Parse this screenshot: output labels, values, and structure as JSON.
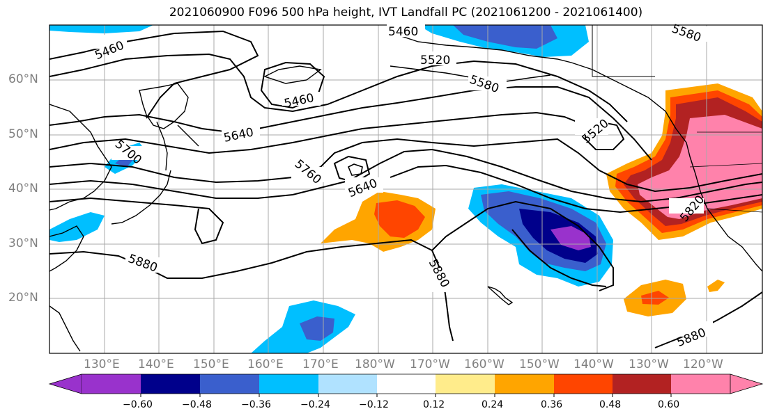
{
  "title": "2021060900 F096 500 hPa height, IVT Landfall PC (2021061200 - 2021061400)",
  "map": {
    "lat_labels": [
      "60°N",
      "50°N",
      "40°N",
      "30°N",
      "20°N"
    ],
    "lon_labels": [
      "130°E",
      "140°E",
      "150°E",
      "160°E",
      "170°E",
      "180°W",
      "170°W",
      "160°W",
      "150°W",
      "140°W",
      "130°W",
      "120°W"
    ],
    "contour_labels": [
      "5460",
      "5460",
      "5460",
      "5520",
      "5580",
      "5580",
      "5640",
      "5640",
      "5700",
      "5760",
      "5520",
      "5820",
      "5880",
      "5880",
      "5880"
    ]
  },
  "colorbar": {
    "tick_labels": [
      "−0.60",
      "−0.48",
      "−0.36",
      "−0.24",
      "−0.12",
      "0.12",
      "0.24",
      "0.36",
      "0.48",
      "0.60"
    ],
    "colors": [
      "#9932cc",
      "#00008b",
      "#3a5fcd",
      "#00bfff",
      "#b0e2ff",
      "#ffffff",
      "#ffec8b",
      "#ffa500",
      "#ff4500",
      "#b22222",
      "#ff82ab"
    ]
  }
}
